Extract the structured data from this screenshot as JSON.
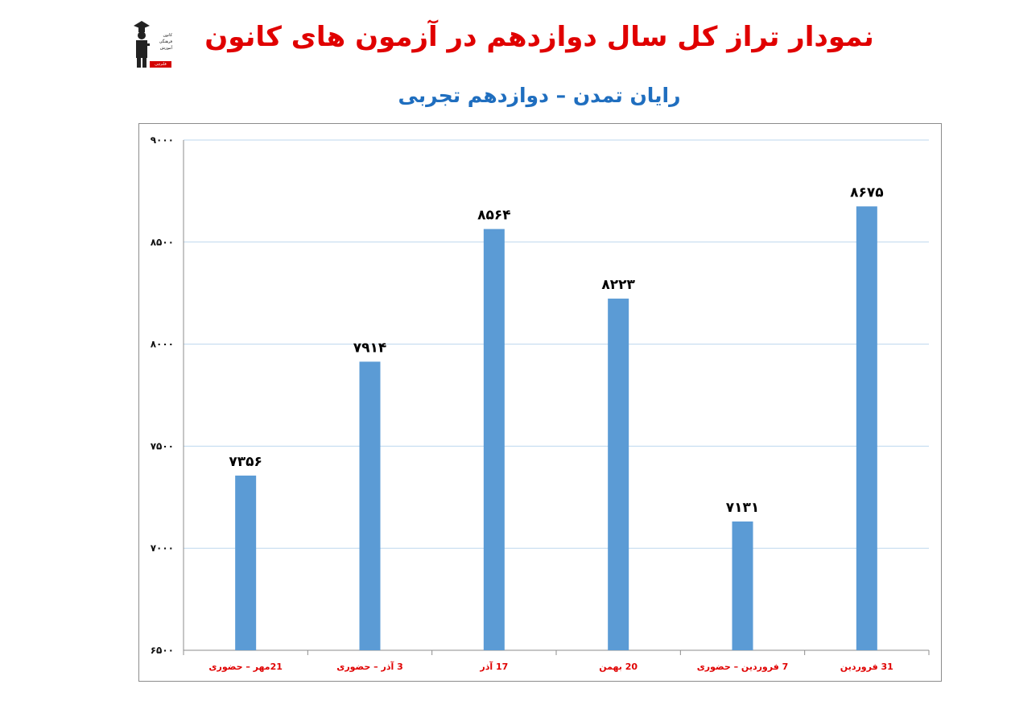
{
  "header": {
    "title": "نمودار تراز کل سال دوازدهم در آزمون های کانون",
    "subtitle": "رایان تمدن – دوازدهم تجربی"
  },
  "logo": {
    "lines": [
      "کانون",
      "فرهنگی",
      "آموزش"
    ],
    "badge": "قلم‌چی"
  },
  "colors": {
    "title": "#e00000",
    "subtitle": "#1f6ebf",
    "bar": "#5b9bd5",
    "category_label": "#e00000",
    "grid": "#bdd7ee"
  },
  "chart_data": {
    "type": "bar",
    "title": "",
    "xlabel": "",
    "ylabel": "",
    "categories": [
      "21مهر – حضوری",
      "3 آذر – حضوری",
      "17 آذر",
      "20 بهمن",
      "7 فروردین – حضوری",
      "31 فروردین"
    ],
    "values": [
      7356,
      7914,
      8564,
      8223,
      7131,
      8675
    ],
    "data_labels": [
      "۷۳۵۶",
      "۷۹۱۴",
      "۸۵۶۴",
      "۸۲۲۳",
      "۷۱۳۱",
      "۸۶۷۵"
    ],
    "ylim": [
      6500,
      9000
    ],
    "yticks": [
      6500,
      7000,
      7500,
      8000,
      8500,
      9000
    ],
    "ytick_labels": [
      "۶۵۰۰",
      "۷۰۰۰",
      "۷۵۰۰",
      "۸۰۰۰",
      "۸۵۰۰",
      "۹۰۰۰"
    ],
    "grid": true,
    "legend": "none"
  }
}
